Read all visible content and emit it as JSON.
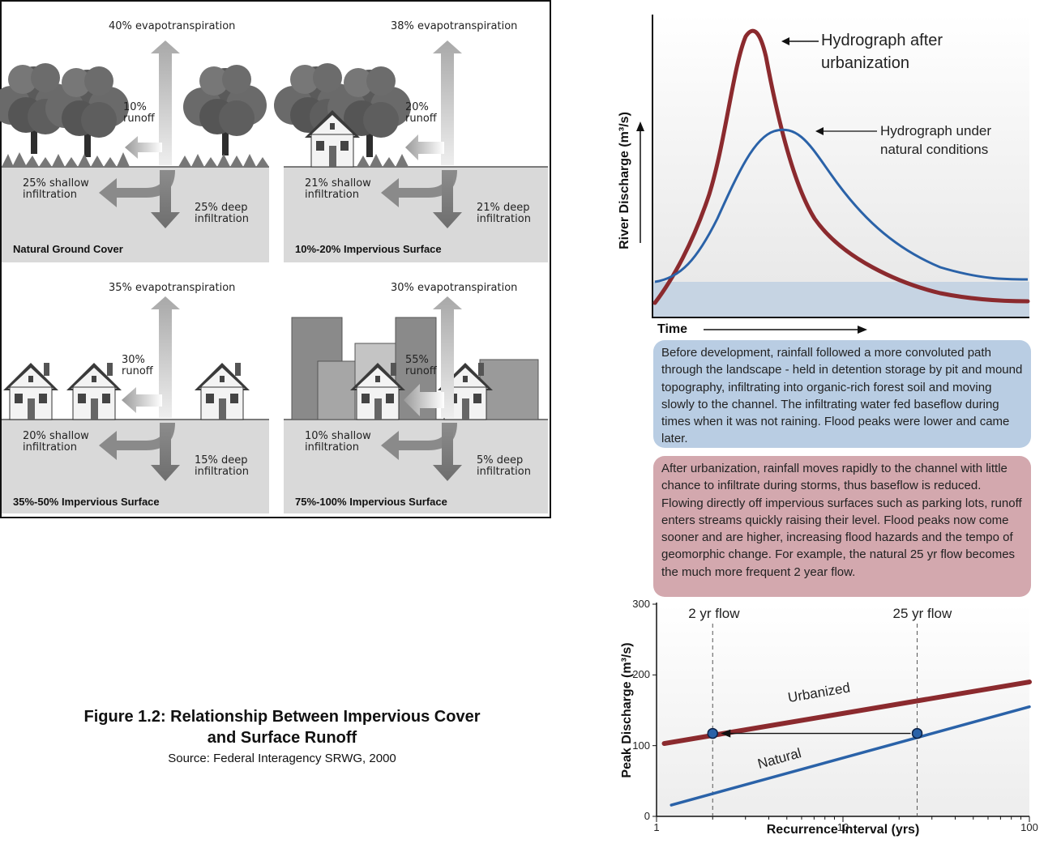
{
  "figure_left": {
    "quadrants": [
      {
        "evap": "40% evapotranspiration",
        "runoff": "10% runoff",
        "shallow": "25% shallow infiltration",
        "deep": "25% deep infiltration",
        "title": "Natural Ground Cover"
      },
      {
        "evap": "38% evapotranspiration",
        "runoff": "20% runoff",
        "shallow": "21% shallow infiltration",
        "deep": "21% deep infiltration",
        "title": "10%-20% Impervious Surface"
      },
      {
        "evap": "35% evapotranspiration",
        "runoff": "30% runoff",
        "shallow": "20% shallow infiltration",
        "deep": "15% deep infiltration",
        "title": "35%-50% Impervious Surface"
      },
      {
        "evap": "30% evapotranspiration",
        "runoff": "55% runoff",
        "shallow": "10% shallow infiltration",
        "deep": "5% deep infiltration",
        "title": "75%-100% Impervious Surface"
      }
    ],
    "caption_line1": "Figure 1.2: Relationship Between Impervious Cover",
    "caption_line2": "and Surface Runoff",
    "source": "Source: Federal Interagency SRWG, 2000"
  },
  "hydrograph": {
    "y_axis_label": "River Discharge (m³/s)",
    "x_axis_label": "Time",
    "label_urban_1": "Hydrograph after",
    "label_urban_2": "urbanization",
    "label_natural_1": "Hydrograph under",
    "label_natural_2": "natural conditions",
    "colors": {
      "urban": "#8b2a2e",
      "natural": "#2a62a8",
      "baseflow": "#c6d4e3"
    }
  },
  "text_boxes": {
    "before": "Before development, rainfall followed a more convoluted path through the landscape - held in detention storage by pit and mound topography, infiltrating into organic-rich forest soil and moving slowly to the channel.  The infiltrating water fed baseflow during times when it was not raining. Flood peaks were lower and came later.",
    "after": "After urbanization, rainfall moves rapidly to the channel with little chance to infiltrate during storms, thus baseflow is reduced.  Flowing directly off impervious surfaces such as parking lots, runoff enters streams quickly raising their level. Flood peaks now come sooner and are higher, increasing flood hazards and the tempo of geomorphic change.  For example, the natural 25 yr flow becomes the much more frequent 2 year flow."
  },
  "chart_data": {
    "type": "line",
    "xscale": "log",
    "xlabel": "Recurrence Interval (yrs)",
    "ylabel": "Peak Discharge (m³/s)",
    "xlim": [
      1,
      100
    ],
    "ylim": [
      0,
      300
    ],
    "x_ticks": [
      "1",
      "10",
      "100"
    ],
    "y_ticks": [
      "0",
      "100",
      "200",
      "300"
    ],
    "series": [
      {
        "name": "Urbanized",
        "x": [
          1.1,
          100
        ],
        "y": [
          103,
          190
        ],
        "color": "#8b2a2e"
      },
      {
        "name": "Natural",
        "x": [
          1.2,
          100
        ],
        "y": [
          16,
          155
        ],
        "color": "#2a62a8"
      }
    ],
    "reference_lines": [
      {
        "label": "2 yr flow",
        "x": 2
      },
      {
        "label": "25 yr flow",
        "x": 25
      }
    ],
    "points": [
      {
        "x": 2,
        "y": 115
      },
      {
        "x": 25,
        "y": 115
      }
    ]
  }
}
